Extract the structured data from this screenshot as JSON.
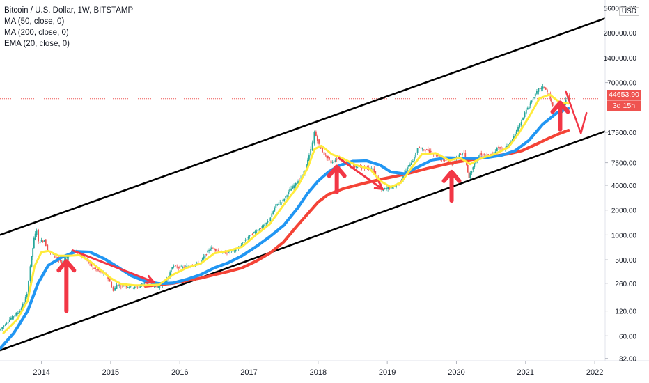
{
  "legend": {
    "title": "Bitcoin / U.S. Dollar, 1W, BITSTAMP",
    "ma50": "MA (50, close, 0)",
    "ma200": "MA (200, close, 0)",
    "ema20": "EMA (20, close, 0)"
  },
  "currency_label": "USD",
  "last_price": "44653.90",
  "countdown": "3d 15h",
  "colors": {
    "ema20": "#ffeb3b",
    "ma50": "#2196f3",
    "ma200": "#f44336",
    "annotation": "#f23645",
    "up_candle": "#26a69a",
    "down_candle": "#ef5350",
    "channel": "#000000"
  },
  "chart_data": {
    "type": "line",
    "title": "Bitcoin / U.S. Dollar, 1W, BITSTAMP",
    "xlabel": "",
    "ylabel": "",
    "y_scale": "log",
    "x_ticks": [
      "2014",
      "2015",
      "2016",
      "2017",
      "2018",
      "2019",
      "2020",
      "2021",
      "2022"
    ],
    "y_ticks": [
      "560000.00",
      "280000.00",
      "140000.00",
      "70000.00",
      "17500.00",
      "7500.00",
      "4000.00",
      "2000.00",
      "1000.00",
      "500.00",
      "260.00",
      "120.00",
      "60.00",
      "32.00"
    ],
    "xlim": [
      2013.4,
      2022.15
    ],
    "ylim": [
      30,
      700000
    ],
    "price_line": 44653.9,
    "price_points": [
      [
        2013.4,
        70
      ],
      [
        2013.55,
        95
      ],
      [
        2013.7,
        120
      ],
      [
        2013.8,
        190
      ],
      [
        2013.85,
        420
      ],
      [
        2013.9,
        900
      ],
      [
        2013.94,
        1150
      ],
      [
        2013.97,
        820
      ],
      [
        2014.05,
        870
      ],
      [
        2014.1,
        650
      ],
      [
        2014.2,
        560
      ],
      [
        2014.3,
        450
      ],
      [
        2014.4,
        580
      ],
      [
        2014.45,
        640
      ],
      [
        2014.55,
        600
      ],
      [
        2014.65,
        520
      ],
      [
        2014.75,
        400
      ],
      [
        2014.85,
        360
      ],
      [
        2014.95,
        330
      ],
      [
        2015.0,
        270
      ],
      [
        2015.05,
        210
      ],
      [
        2015.1,
        250
      ],
      [
        2015.2,
        245
      ],
      [
        2015.3,
        235
      ],
      [
        2015.4,
        230
      ],
      [
        2015.5,
        270
      ],
      [
        2015.6,
        250
      ],
      [
        2015.7,
        235
      ],
      [
        2015.8,
        270
      ],
      [
        2015.85,
        320
      ],
      [
        2015.9,
        420
      ],
      [
        2015.95,
        410
      ],
      [
        2016.05,
        400
      ],
      [
        2016.15,
        420
      ],
      [
        2016.3,
        460
      ],
      [
        2016.45,
        700
      ],
      [
        2016.55,
        650
      ],
      [
        2016.65,
        600
      ],
      [
        2016.8,
        650
      ],
      [
        2016.9,
        750
      ],
      [
        2017.0,
        950
      ],
      [
        2017.1,
        1100
      ],
      [
        2017.2,
        1250
      ],
      [
        2017.3,
        1500
      ],
      [
        2017.4,
        2300
      ],
      [
        2017.5,
        2600
      ],
      [
        2017.6,
        3500
      ],
      [
        2017.7,
        4300
      ],
      [
        2017.8,
        5500
      ],
      [
        2017.88,
        9000
      ],
      [
        2017.93,
        13000
      ],
      [
        2017.96,
        17500
      ],
      [
        2018.0,
        14000
      ],
      [
        2018.05,
        11000
      ],
      [
        2018.1,
        9500
      ],
      [
        2018.15,
        8500
      ],
      [
        2018.2,
        7500
      ],
      [
        2018.3,
        8500
      ],
      [
        2018.4,
        7800
      ],
      [
        2018.5,
        6500
      ],
      [
        2018.6,
        6800
      ],
      [
        2018.7,
        6500
      ],
      [
        2018.8,
        6300
      ],
      [
        2018.88,
        4500
      ],
      [
        2018.93,
        3500
      ],
      [
        2019.0,
        3700
      ],
      [
        2019.1,
        3800
      ],
      [
        2019.2,
        4500
      ],
      [
        2019.3,
        6500
      ],
      [
        2019.4,
        8500
      ],
      [
        2019.45,
        11500
      ],
      [
        2019.5,
        11000
      ],
      [
        2019.6,
        10500
      ],
      [
        2019.7,
        9500
      ],
      [
        2019.8,
        8500
      ],
      [
        2019.9,
        7500
      ],
      [
        2019.95,
        7200
      ],
      [
        2020.05,
        9500
      ],
      [
        2020.12,
        9800
      ],
      [
        2020.19,
        5000
      ],
      [
        2020.25,
        6800
      ],
      [
        2020.35,
        9500
      ],
      [
        2020.45,
        9300
      ],
      [
        2020.55,
        9400
      ],
      [
        2020.6,
        11500
      ],
      [
        2020.7,
        10700
      ],
      [
        2020.8,
        13500
      ],
      [
        2020.88,
        18500
      ],
      [
        2020.95,
        24000
      ],
      [
        2021.0,
        30000
      ],
      [
        2021.08,
        40000
      ],
      [
        2021.15,
        50000
      ],
      [
        2021.2,
        58000
      ],
      [
        2021.28,
        62000
      ],
      [
        2021.35,
        50000
      ],
      [
        2021.4,
        36000
      ],
      [
        2021.45,
        35000
      ],
      [
        2021.52,
        33000
      ],
      [
        2021.57,
        40000
      ],
      [
        2021.62,
        48000
      ],
      [
        2021.64,
        44653.9
      ]
    ],
    "series": [
      {
        "name": "EMA (20, close, 0)",
        "values": [
          [
            2013.45,
            65
          ],
          [
            2013.65,
            95
          ],
          [
            2013.8,
            160
          ],
          [
            2013.9,
            420
          ],
          [
            2014.0,
            620
          ],
          [
            2014.1,
            640
          ],
          [
            2014.25,
            560
          ],
          [
            2014.4,
            560
          ],
          [
            2014.55,
            570
          ],
          [
            2014.7,
            480
          ],
          [
            2014.85,
            380
          ],
          [
            2015.0,
            300
          ],
          [
            2015.15,
            255
          ],
          [
            2015.35,
            245
          ],
          [
            2015.5,
            245
          ],
          [
            2015.7,
            250
          ],
          [
            2015.9,
            330
          ],
          [
            2016.1,
            400
          ],
          [
            2016.3,
            450
          ],
          [
            2016.5,
            600
          ],
          [
            2016.7,
            640
          ],
          [
            2016.9,
            720
          ],
          [
            2017.1,
            1000
          ],
          [
            2017.3,
            1350
          ],
          [
            2017.5,
            2300
          ],
          [
            2017.7,
            3800
          ],
          [
            2017.85,
            6500
          ],
          [
            2017.95,
            11000
          ],
          [
            2018.05,
            12000
          ],
          [
            2018.2,
            9500
          ],
          [
            2018.35,
            8500
          ],
          [
            2018.55,
            7000
          ],
          [
            2018.75,
            6300
          ],
          [
            2018.9,
            4500
          ],
          [
            2019.05,
            3800
          ],
          [
            2019.2,
            4300
          ],
          [
            2019.35,
            6500
          ],
          [
            2019.5,
            9500
          ],
          [
            2019.7,
            9800
          ],
          [
            2019.9,
            8000
          ],
          [
            2020.05,
            8600
          ],
          [
            2020.2,
            7200
          ],
          [
            2020.35,
            8500
          ],
          [
            2020.55,
            9500
          ],
          [
            2020.75,
            11500
          ],
          [
            2020.9,
            17000
          ],
          [
            2021.05,
            27000
          ],
          [
            2021.2,
            45000
          ],
          [
            2021.35,
            50000
          ],
          [
            2021.5,
            40000
          ],
          [
            2021.62,
            39000
          ]
        ]
      },
      {
        "name": "MA (50, close, 0)",
        "values": [
          [
            2013.4,
            42
          ],
          [
            2013.6,
            65
          ],
          [
            2013.8,
            120
          ],
          [
            2013.95,
            260
          ],
          [
            2014.1,
            430
          ],
          [
            2014.3,
            540
          ],
          [
            2014.5,
            630
          ],
          [
            2014.7,
            620
          ],
          [
            2014.9,
            520
          ],
          [
            2015.1,
            410
          ],
          [
            2015.3,
            320
          ],
          [
            2015.5,
            275
          ],
          [
            2015.7,
            258
          ],
          [
            2015.9,
            262
          ],
          [
            2016.1,
            290
          ],
          [
            2016.3,
            330
          ],
          [
            2016.5,
            400
          ],
          [
            2016.7,
            460
          ],
          [
            2016.9,
            560
          ],
          [
            2017.1,
            720
          ],
          [
            2017.3,
            950
          ],
          [
            2017.5,
            1300
          ],
          [
            2017.7,
            2100
          ],
          [
            2017.85,
            3200
          ],
          [
            2018.0,
            4500
          ],
          [
            2018.15,
            5800
          ],
          [
            2018.3,
            6900
          ],
          [
            2018.5,
            7800
          ],
          [
            2018.7,
            7900
          ],
          [
            2018.9,
            7000
          ],
          [
            2019.05,
            5800
          ],
          [
            2019.25,
            5500
          ],
          [
            2019.45,
            6700
          ],
          [
            2019.65,
            8100
          ],
          [
            2019.85,
            8600
          ],
          [
            2020.05,
            8500
          ],
          [
            2020.25,
            8400
          ],
          [
            2020.45,
            8700
          ],
          [
            2020.65,
            9200
          ],
          [
            2020.85,
            10500
          ],
          [
            2021.05,
            14000
          ],
          [
            2021.25,
            22000
          ],
          [
            2021.45,
            30000
          ],
          [
            2021.62,
            34000
          ]
        ]
      },
      {
        "name": "MA (200, close, 0)",
        "values": [
          [
            2015.5,
            240
          ],
          [
            2015.7,
            250
          ],
          [
            2015.9,
            260
          ],
          [
            2016.1,
            280
          ],
          [
            2016.3,
            300
          ],
          [
            2016.5,
            330
          ],
          [
            2016.7,
            360
          ],
          [
            2016.9,
            400
          ],
          [
            2017.1,
            480
          ],
          [
            2017.3,
            600
          ],
          [
            2017.5,
            820
          ],
          [
            2017.7,
            1300
          ],
          [
            2017.85,
            1800
          ],
          [
            2018.0,
            2500
          ],
          [
            2018.15,
            3100
          ],
          [
            2018.35,
            3600
          ],
          [
            2018.55,
            4000
          ],
          [
            2018.75,
            4400
          ],
          [
            2018.95,
            4800
          ],
          [
            2019.15,
            5200
          ],
          [
            2019.35,
            5700
          ],
          [
            2019.55,
            6300
          ],
          [
            2019.75,
            6900
          ],
          [
            2019.95,
            7500
          ],
          [
            2020.15,
            8000
          ],
          [
            2020.35,
            8500
          ],
          [
            2020.55,
            9000
          ],
          [
            2020.75,
            9600
          ],
          [
            2020.95,
            10500
          ],
          [
            2021.15,
            12500
          ],
          [
            2021.35,
            15000
          ],
          [
            2021.5,
            17000
          ],
          [
            2021.62,
            18500
          ]
        ]
      }
    ],
    "channel_lines": [
      {
        "from": [
          2013.4,
          1000
        ],
        "to": [
          2022.15,
          420000
        ]
      },
      {
        "from": [
          2013.4,
          40
        ],
        "to": [
          2022.15,
          18000
        ]
      }
    ],
    "annotations": {
      "up_arrows": [
        {
          "x": 2014.36,
          "y_bottom": 120,
          "y_top": 480
        },
        {
          "x": 2018.27,
          "y_bottom": 3300,
          "y_top": 6700
        },
        {
          "x": 2019.93,
          "y_bottom": 2600,
          "y_top": 5800
        },
        {
          "x": 2021.5,
          "y_bottom": 19000,
          "y_top": 40000
        }
      ],
      "trend_arrows": [
        {
          "from": [
            2014.45,
            650
          ],
          "to": [
            2015.62,
            270
          ]
        },
        {
          "from": [
            2018.3,
            8500
          ],
          "to": [
            2018.93,
            3600
          ]
        }
      ],
      "forecast_path": [
        [
          2021.58,
          55000
        ],
        [
          2021.8,
          17000
        ],
        [
          2021.88,
          30000
        ]
      ]
    }
  }
}
